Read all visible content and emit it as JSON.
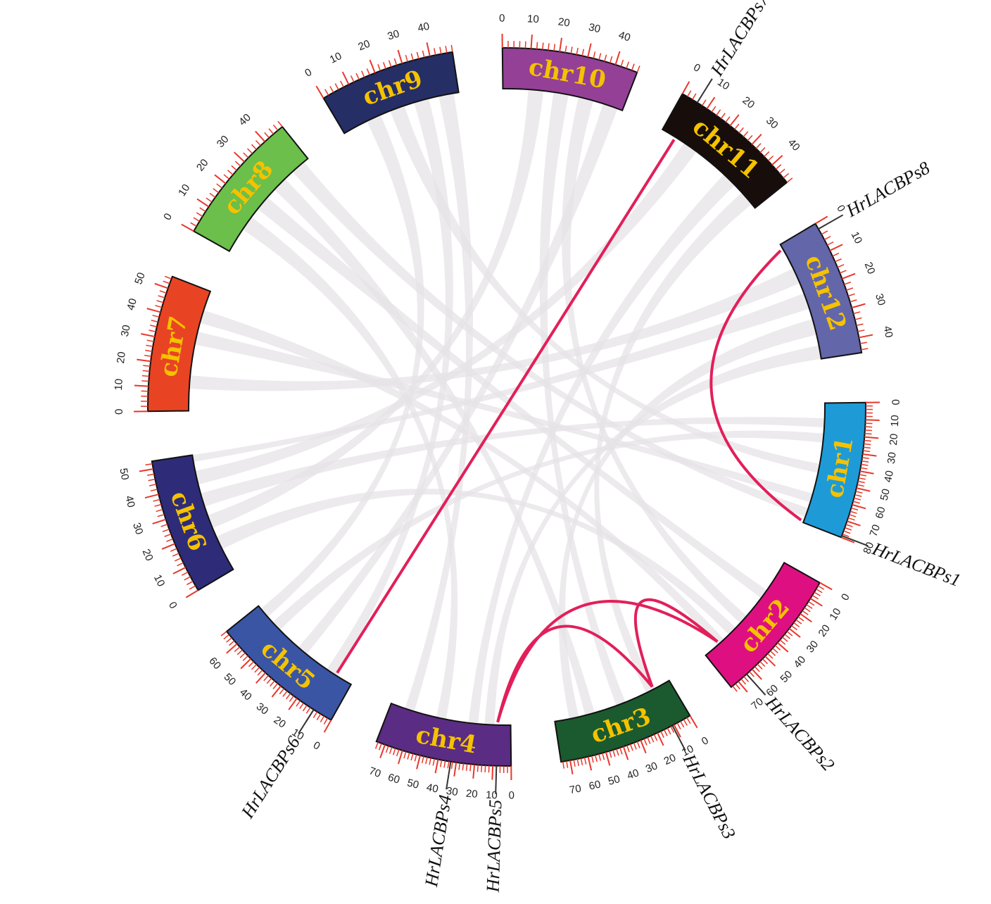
{
  "chart_data": {
    "type": "circos",
    "label_color": "#F5C200",
    "tick_color": "#E8372A",
    "link_color": "#E21F5A",
    "background_link_color": "#E6E3E5",
    "chromosomes": [
      {
        "name": "chr1",
        "length": 80,
        "color": "#1E9BD7",
        "ticks": [
          "0",
          "10",
          "20",
          "30",
          "40",
          "50",
          "60",
          "70",
          "80"
        ]
      },
      {
        "name": "chr2",
        "length": 75,
        "color": "#DE1081",
        "ticks": [
          "0",
          "10",
          "20",
          "30",
          "40",
          "50",
          "60",
          "70"
        ]
      },
      {
        "name": "chr3",
        "length": 75,
        "color": "#1A5A2E",
        "ticks": [
          "0",
          "10",
          "20",
          "30",
          "40",
          "50",
          "60",
          "70"
        ]
      },
      {
        "name": "chr4",
        "length": 75,
        "color": "#5B2C83",
        "ticks": [
          "0",
          "10",
          "20",
          "30",
          "40",
          "50",
          "60",
          "70"
        ]
      },
      {
        "name": "chr5",
        "length": 68,
        "color": "#3A55A4",
        "ticks": [
          "0",
          "10",
          "20",
          "30",
          "40",
          "50",
          "60"
        ]
      },
      {
        "name": "chr6",
        "length": 53,
        "color": "#2E2C78",
        "ticks": [
          "0",
          "10",
          "20",
          "30",
          "40",
          "50"
        ]
      },
      {
        "name": "chr7",
        "length": 55,
        "color": "#E84423",
        "ticks": [
          "0",
          "10",
          "20",
          "30",
          "40",
          "50"
        ]
      },
      {
        "name": "chr8",
        "length": 48,
        "color": "#6BBF4A",
        "ticks": [
          "0",
          "10",
          "20",
          "30",
          "40"
        ]
      },
      {
        "name": "chr9",
        "length": 48,
        "color": "#262E66",
        "ticks": [
          "0",
          "10",
          "20",
          "30",
          "40"
        ]
      },
      {
        "name": "chr10",
        "length": 48,
        "color": "#944096",
        "ticks": [
          "0",
          "10",
          "20",
          "30",
          "40"
        ]
      },
      {
        "name": "chr11",
        "length": 48,
        "color": "#170E0C",
        "ticks": [
          "0",
          "10",
          "20",
          "30",
          "40"
        ]
      },
      {
        "name": "chr12",
        "length": 45,
        "color": "#6366A9",
        "ticks": [
          "0",
          "10",
          "20",
          "30",
          "40"
        ]
      }
    ],
    "genes": [
      {
        "name": "HrLACBPs1",
        "chr": "chr1",
        "pos": 79
      },
      {
        "name": "HrLACBPs2",
        "chr": "chr2",
        "pos": 64
      },
      {
        "name": "HrLACBPs3",
        "chr": "chr3",
        "pos": 11
      },
      {
        "name": "HrLACBPs4",
        "chr": "chr4",
        "pos": 33
      },
      {
        "name": "HrLACBPs5",
        "chr": "chr4",
        "pos": 8
      },
      {
        "name": "HrLACBPs6",
        "chr": "chr5",
        "pos": 10
      },
      {
        "name": "HrLACBPs7",
        "chr": "chr11",
        "pos": 6
      },
      {
        "name": "HrLACBPs8",
        "chr": "chr12",
        "pos": 2
      }
    ],
    "links": [
      {
        "a": "HrLACBPs1",
        "b": "HrLACBPs8"
      },
      {
        "a": "HrLACBPs6",
        "b": "HrLACBPs7"
      },
      {
        "a": "HrLACBPs5",
        "b": "HrLACBPs3"
      },
      {
        "a": "HrLACBPs5",
        "b": "HrLACBPs2"
      },
      {
        "a": "HrLACBPs3",
        "b": "HrLACBPs2"
      }
    ],
    "background_links": [
      [
        "chr1",
        10,
        "chr6",
        30
      ],
      [
        "chr1",
        40,
        "chr9",
        20
      ],
      [
        "chr1",
        60,
        "chr7",
        30
      ],
      [
        "chr2",
        20,
        "chr8",
        20
      ],
      [
        "chr2",
        50,
        "chr6",
        10
      ],
      [
        "chr3",
        30,
        "chr10",
        20
      ],
      [
        "chr3",
        60,
        "chr12",
        30
      ],
      [
        "chr4",
        20,
        "chr11",
        30
      ],
      [
        "chr4",
        60,
        "chr9",
        40
      ],
      [
        "chr5",
        30,
        "chr10",
        40
      ],
      [
        "chr5",
        50,
        "chr1",
        20
      ],
      [
        "chr6",
        40,
        "chr11",
        10
      ],
      [
        "chr7",
        10,
        "chr12",
        10
      ],
      [
        "chr7",
        40,
        "chr2",
        60
      ],
      [
        "chr8",
        30,
        "chr3",
        50
      ],
      [
        "chr8",
        10,
        "chr4",
        40
      ],
      [
        "chr9",
        10,
        "chr5",
        60
      ],
      [
        "chr10",
        10,
        "chr6",
        20
      ],
      [
        "chr11",
        40,
        "chr3",
        10
      ],
      [
        "chr12",
        40,
        "chr4",
        10
      ],
      [
        "chr1",
        70,
        "chr8",
        40
      ],
      [
        "chr2",
        40,
        "chr10",
        30
      ],
      [
        "chr5",
        10,
        "chr9",
        30
      ],
      [
        "chr6",
        50,
        "chr12",
        20
      ]
    ]
  }
}
